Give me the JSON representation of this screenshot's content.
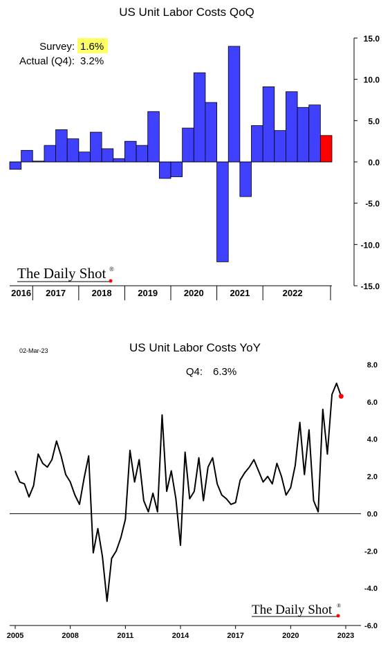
{
  "chart_data": [
    {
      "type": "bar",
      "title": "US Unit Labor Costs QoQ",
      "xlabel": "",
      "ylabel": "",
      "ylim": [
        -15,
        15
      ],
      "yticks": [
        "15.0",
        "10.0",
        "5.0",
        "0.0",
        "-5.0",
        "-10.0",
        "-15.0"
      ],
      "year_labels": [
        "2016",
        "2017",
        "2018",
        "2019",
        "2020",
        "2021",
        "2022"
      ],
      "values": [
        -0.9,
        1.4,
        0.1,
        2.0,
        3.9,
        2.8,
        1.2,
        3.6,
        1.6,
        0.4,
        2.5,
        2.0,
        6.1,
        -2.0,
        -1.8,
        4.1,
        10.8,
        7.2,
        -12.1,
        14.0,
        -4.2,
        4.4,
        9.1,
        3.8,
        8.5,
        6.6,
        6.9,
        3.2
      ],
      "bar_colors": {
        "default": "#4040ff",
        "last": "#ff0000"
      },
      "annotation": {
        "survey_label": "Survey:",
        "survey_value": "1.6%",
        "survey_highlight": "#ffff66",
        "actual_label": "Actual (Q4):",
        "actual_value": "3.2%"
      },
      "grid": false,
      "legend": "none"
    },
    {
      "type": "line",
      "title": "US Unit Labor Costs YoY",
      "date_note": "02-Mar-23",
      "xlabel": "",
      "ylabel": "",
      "ylim": [
        -6,
        8
      ],
      "yticks": [
        "8.0",
        "6.0",
        "4.0",
        "2.0",
        "0.0",
        "-2.0",
        "-4.0",
        "-6.0"
      ],
      "xticks": [
        "2005",
        "2008",
        "2011",
        "2014",
        "2017",
        "2020",
        "2023"
      ],
      "xrange": [
        2005.0,
        2023.0
      ],
      "x": [
        2005.0,
        2005.25,
        2005.5,
        2005.75,
        2006.0,
        2006.25,
        2006.5,
        2006.75,
        2007.0,
        2007.25,
        2007.5,
        2007.75,
        2008.0,
        2008.25,
        2008.5,
        2008.75,
        2009.0,
        2009.25,
        2009.5,
        2009.75,
        2010.0,
        2010.25,
        2010.5,
        2010.75,
        2011.0,
        2011.25,
        2011.5,
        2011.75,
        2012.0,
        2012.25,
        2012.5,
        2012.75,
        2013.0,
        2013.25,
        2013.5,
        2013.75,
        2014.0,
        2014.25,
        2014.5,
        2014.75,
        2015.0,
        2015.25,
        2015.5,
        2015.75,
        2016.0,
        2016.25,
        2016.5,
        2016.75,
        2017.0,
        2017.25,
        2017.5,
        2017.75,
        2018.0,
        2018.25,
        2018.5,
        2018.75,
        2019.0,
        2019.25,
        2019.5,
        2019.75,
        2020.0,
        2020.25,
        2020.5,
        2020.75,
        2021.0,
        2021.25,
        2021.5,
        2021.75,
        2022.0,
        2022.25,
        2022.5,
        2022.75
      ],
      "values": [
        2.3,
        1.7,
        1.6,
        0.9,
        1.5,
        3.2,
        2.7,
        2.5,
        2.9,
        3.9,
        3.1,
        2.1,
        1.7,
        1.0,
        0.5,
        1.9,
        3.1,
        -2.1,
        -0.8,
        -2.3,
        -4.7,
        -2.4,
        -2.0,
        -1.3,
        -0.3,
        3.4,
        1.7,
        2.9,
        0.7,
        0.1,
        1.1,
        0.1,
        5.3,
        1.2,
        2.3,
        0.8,
        -1.7,
        3.3,
        0.8,
        1.2,
        3.0,
        0.7,
        2.5,
        3.0,
        1.6,
        1.0,
        0.8,
        0.5,
        0.6,
        1.8,
        2.2,
        2.5,
        2.9,
        2.3,
        1.7,
        2.0,
        1.6,
        2.7,
        2.0,
        1.0,
        1.4,
        2.6,
        4.9,
        2.1,
        4.5,
        0.7,
        0.1,
        5.6,
        3.2,
        6.4,
        7.0,
        6.3
      ],
      "line_color": "#000000",
      "marker_color": "#ff0000",
      "annotation": {
        "label": "Q4:",
        "value": "6.3%"
      },
      "grid": false,
      "legend": "none"
    }
  ],
  "watermark": {
    "text": "The Daily Shot",
    "mark": "®"
  }
}
